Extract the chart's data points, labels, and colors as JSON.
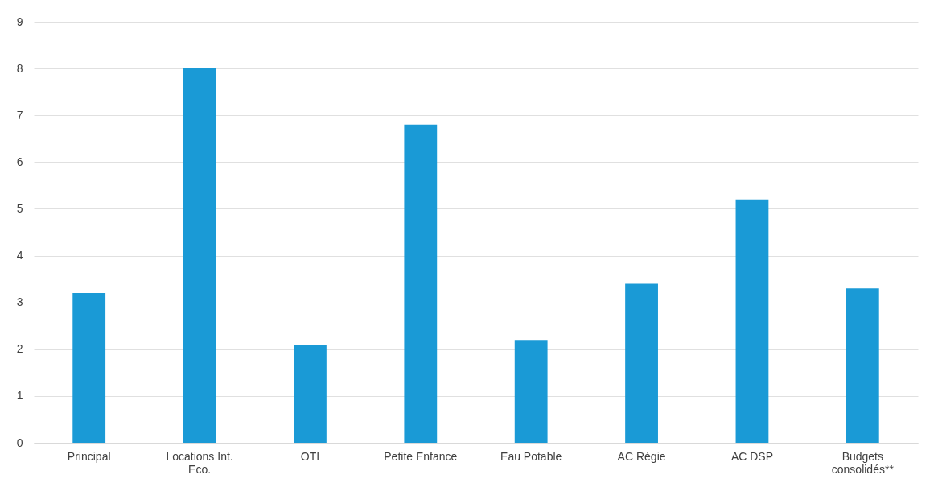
{
  "chart_data": {
    "type": "bar",
    "categories": [
      "Principal",
      "Locations Int. Eco.",
      "OTI",
      "Petite Enfance",
      "Eau Potable",
      "AC Régie",
      "AC DSP",
      "Budgets consolidés**"
    ],
    "values": [
      3.2,
      8.0,
      2.1,
      6.8,
      2.2,
      3.4,
      5.2,
      3.3
    ],
    "color": "#1a9ad6",
    "ylim": [
      0,
      9
    ],
    "yticks": [
      0,
      1,
      2,
      3,
      4,
      5,
      6,
      7,
      8,
      9
    ],
    "grid": "y"
  }
}
